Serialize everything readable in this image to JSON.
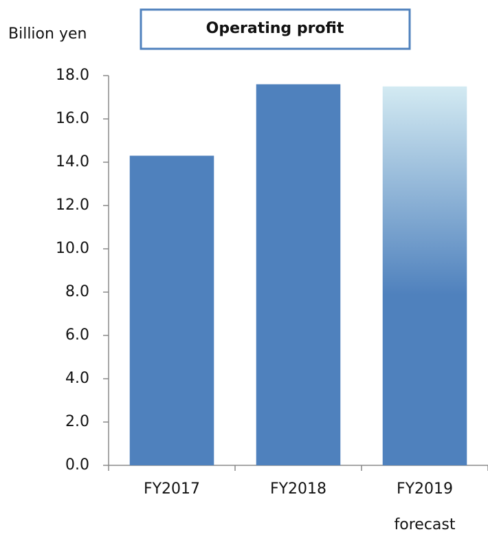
{
  "chart_data": {
    "type": "bar",
    "title": "Operating profit",
    "y_label": "Billion yen",
    "categories": [
      "FY2017",
      "FY2018",
      "FY2019 forecast"
    ],
    "values": [
      14.3,
      17.6,
      17.5
    ],
    "colors": [
      [
        "#4f81bd"
      ],
      [
        "#4f81bd"
      ],
      [
        "#d3eaf2",
        "#4f81bd"
      ]
    ],
    "ylim": [
      0,
      18
    ],
    "yticks": [
      {
        "value": 0,
        "label": "0.0"
      },
      {
        "value": 2,
        "label": "2.0"
      },
      {
        "value": 4,
        "label": "4.0"
      },
      {
        "value": 6,
        "label": "6.0"
      },
      {
        "value": 8,
        "label": "8.0"
      },
      {
        "value": 10,
        "label": "10.0"
      },
      {
        "value": 12,
        "label": "12.0"
      },
      {
        "value": 14,
        "label": "14.0"
      },
      {
        "value": 16,
        "label": "16.0"
      },
      {
        "value": 18,
        "label": "18.0"
      }
    ],
    "grid": false
  }
}
